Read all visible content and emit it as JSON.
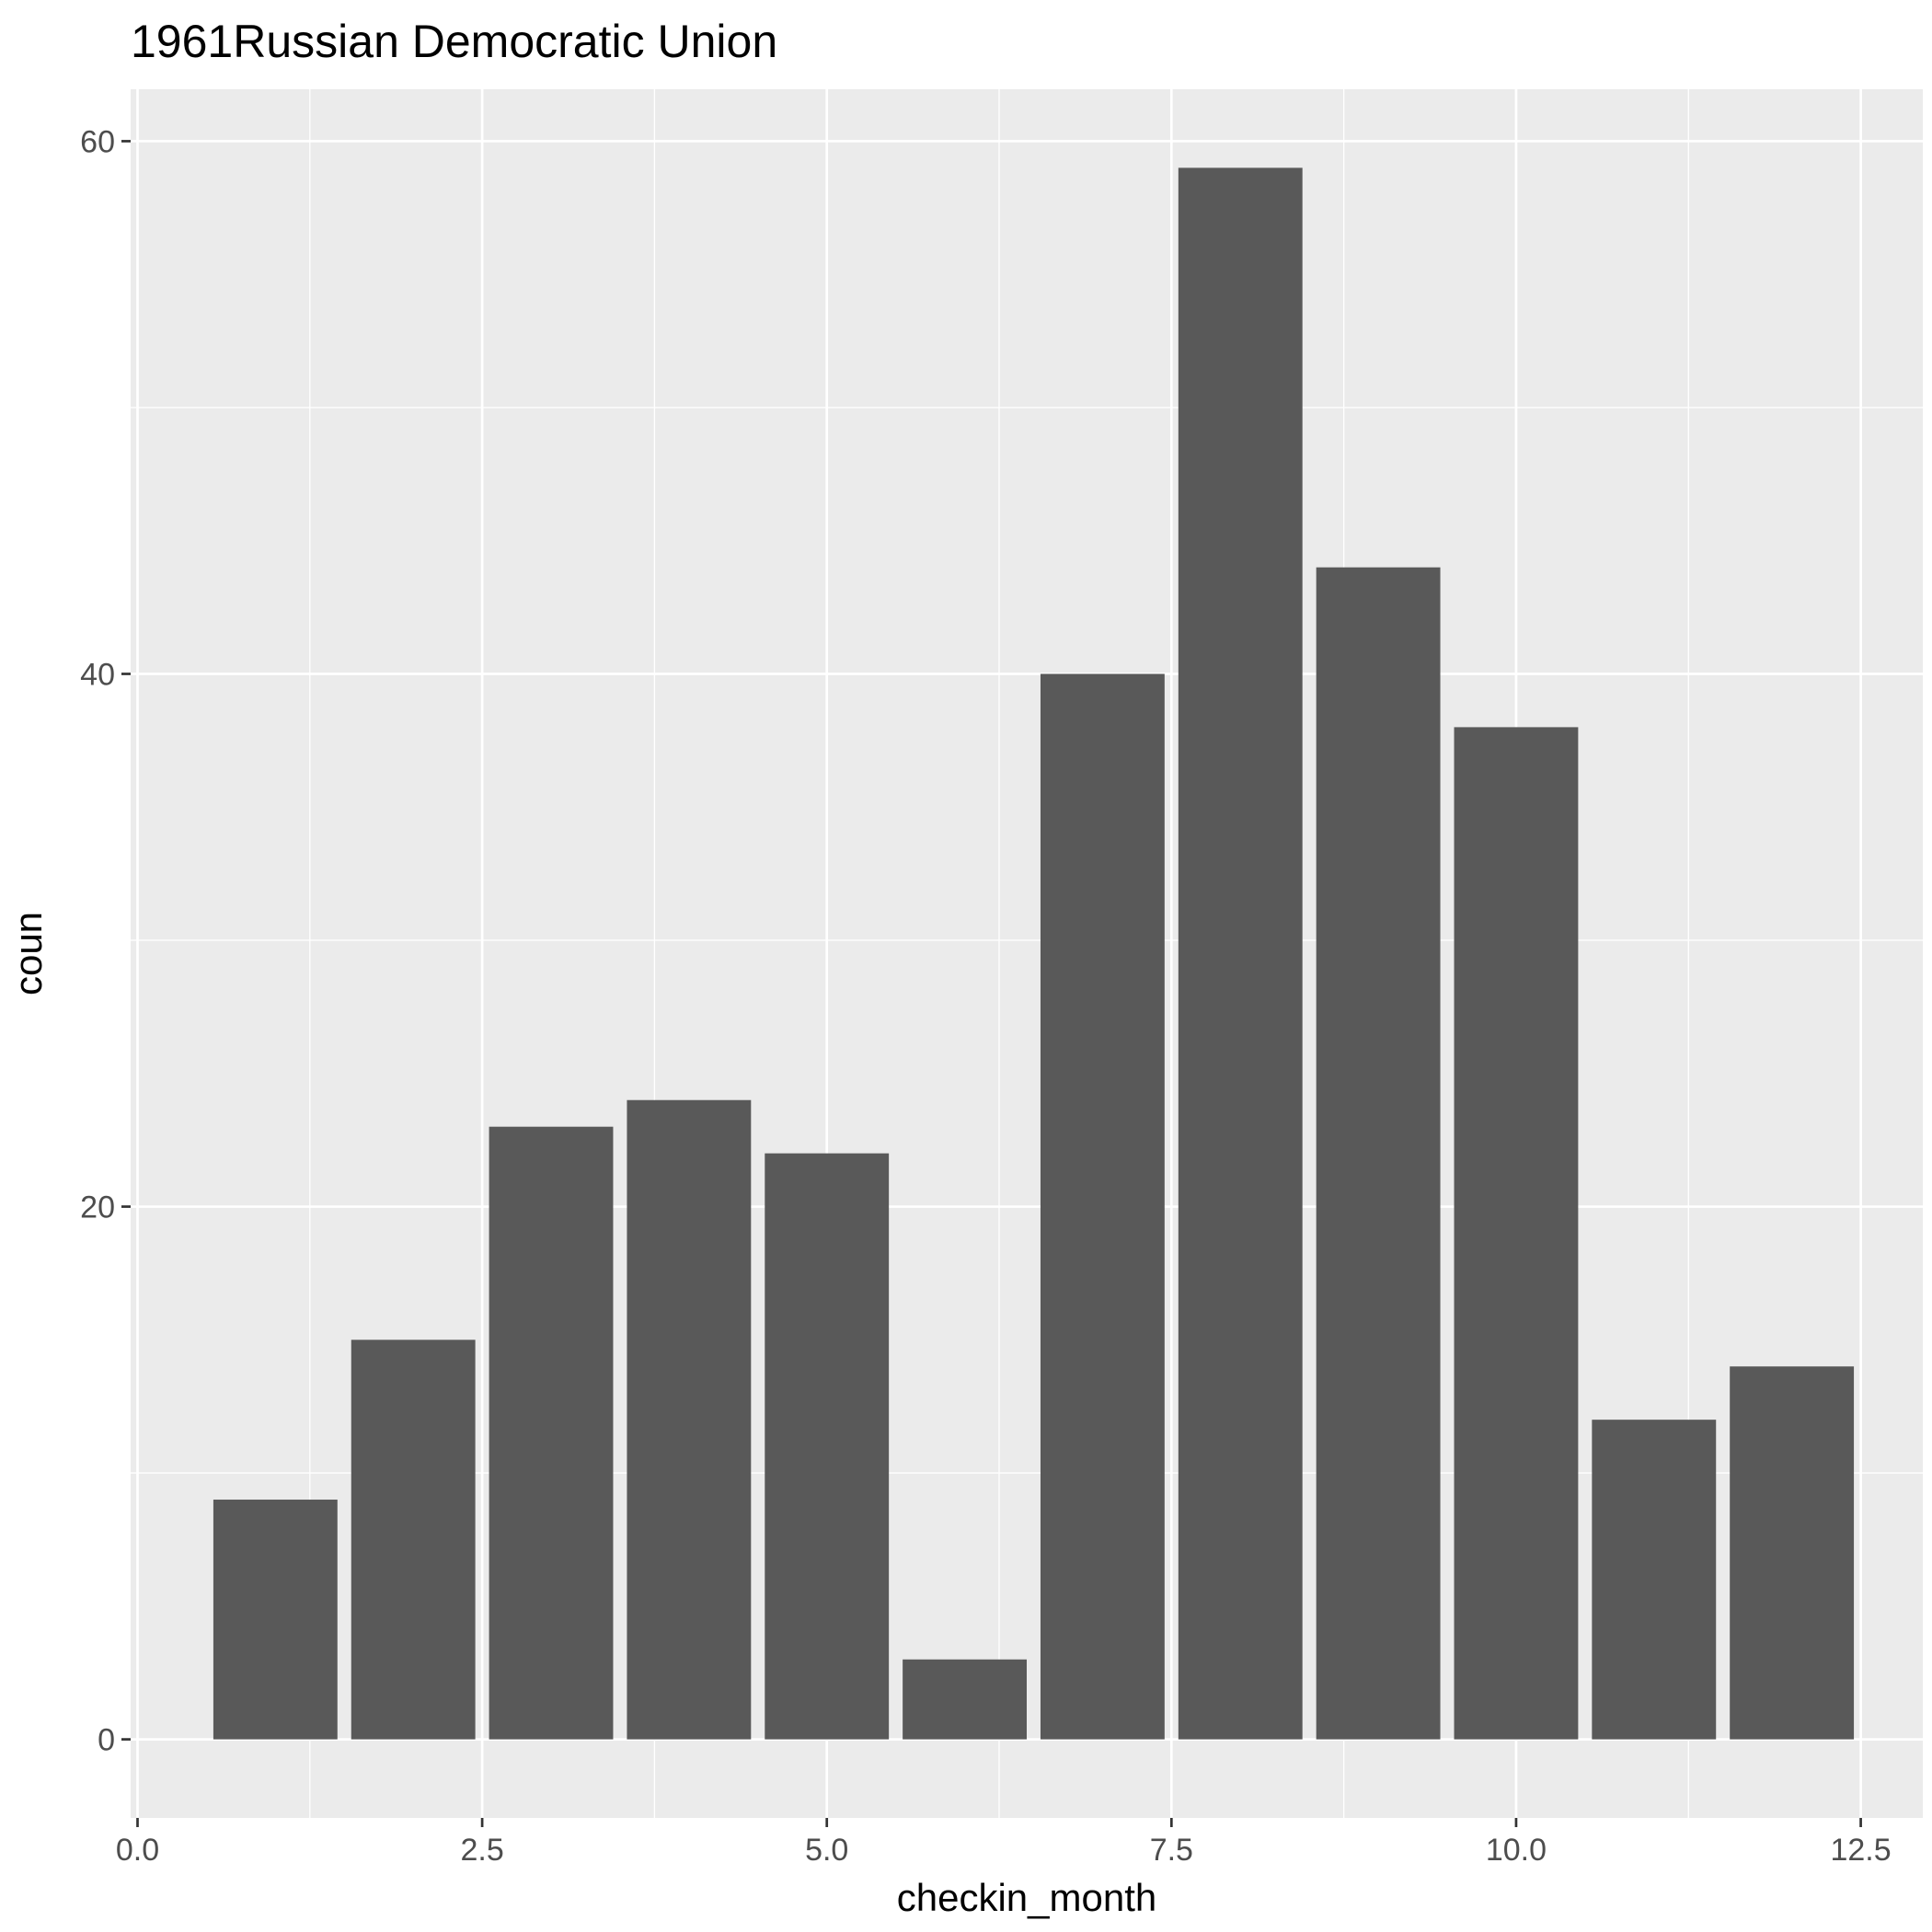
{
  "chart_data": {
    "type": "bar",
    "title": "1961Russian Democratic Union",
    "xlabel": "checkin_month",
    "ylabel": "coun",
    "x": [
      1,
      2,
      3,
      4,
      5,
      6,
      7,
      8,
      9,
      10,
      11,
      12
    ],
    "values": [
      9,
      15,
      23,
      24,
      22,
      3,
      40,
      59,
      44,
      38,
      12,
      14
    ],
    "bar_width": 0.9,
    "xlim": [
      -0.05,
      12.95
    ],
    "ylim": [
      -2.95,
      61.95
    ],
    "x_ticks": [
      0,
      2.5,
      5,
      7.5,
      10,
      12.5
    ],
    "x_tick_labels": [
      "0.0",
      "2.5",
      "5.0",
      "7.5",
      "10.0",
      "12.5"
    ],
    "y_ticks": [
      0,
      20,
      40,
      60
    ],
    "y_tick_labels": [
      "0",
      "20",
      "40",
      "60"
    ],
    "grid": true,
    "colors": {
      "bar": "#595959",
      "panel": "#ebebeb",
      "grid": "#ffffff",
      "tick": "#333333"
    }
  }
}
